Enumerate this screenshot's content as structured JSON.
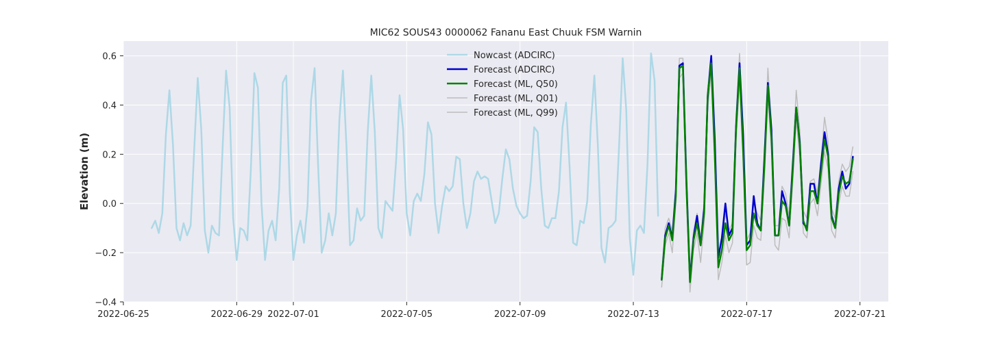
{
  "chart_data": {
    "type": "line",
    "title": "MIC62 SOUS43 0000062 Fananu East Chuuk FSM Warnin",
    "xlabel": "",
    "ylabel": "Elevation (m)",
    "x_axis_type": "date",
    "xlim": [
      "2022-06-25T00:00",
      "2022-07-22T00:00"
    ],
    "ylim": [
      -0.4,
      0.66
    ],
    "xticks": [
      "2022-06-25",
      "2022-06-29",
      "2022-07-01",
      "2022-07-05",
      "2022-07-09",
      "2022-07-13",
      "2022-07-17",
      "2022-07-21"
    ],
    "yticks": [
      -0.4,
      -0.2,
      0.0,
      0.2,
      0.4,
      0.6
    ],
    "ytick_labels": [
      "−0.4",
      "−0.2",
      "0.0",
      "0.2",
      "0.4",
      "0.6"
    ],
    "grid": true,
    "legend_position": "top-center",
    "background_color": "#eaeaf2",
    "series": [
      {
        "name": "Nowcast (ADCIRC)",
        "color": "#add8e6",
        "line_width": 2.5,
        "start": "2022-06-26T00:00",
        "step_hours": 3,
        "values": [
          -0.1,
          -0.07,
          -0.12,
          -0.04,
          0.28,
          0.46,
          0.24,
          -0.1,
          -0.15,
          -0.08,
          -0.13,
          -0.09,
          0.22,
          0.51,
          0.3,
          -0.11,
          -0.2,
          -0.09,
          -0.12,
          -0.13,
          0.22,
          0.54,
          0.39,
          -0.06,
          -0.23,
          -0.1,
          -0.11,
          -0.15,
          0.14,
          0.53,
          0.47,
          0.0,
          -0.23,
          -0.11,
          -0.07,
          -0.15,
          0.06,
          0.49,
          0.52,
          0.04,
          -0.23,
          -0.13,
          -0.07,
          -0.16,
          -0.01,
          0.42,
          0.55,
          0.15,
          -0.2,
          -0.15,
          -0.04,
          -0.13,
          -0.04,
          0.34,
          0.54,
          0.23,
          -0.17,
          -0.15,
          -0.02,
          -0.07,
          -0.05,
          0.29,
          0.52,
          0.29,
          -0.1,
          -0.14,
          0.01,
          -0.01,
          -0.03,
          0.17,
          0.44,
          0.3,
          -0.04,
          -0.13,
          0.01,
          0.04,
          0.01,
          0.12,
          0.33,
          0.28,
          0.0,
          -0.12,
          -0.01,
          0.07,
          0.05,
          0.07,
          0.19,
          0.18,
          0.0,
          -0.1,
          -0.04,
          0.09,
          0.13,
          0.1,
          0.11,
          0.1,
          0.01,
          -0.08,
          -0.04,
          0.1,
          0.22,
          0.18,
          0.06,
          -0.01,
          -0.04,
          -0.06,
          -0.05,
          0.09,
          0.31,
          0.29,
          0.06,
          -0.09,
          -0.1,
          -0.06,
          -0.06,
          0.05,
          0.31,
          0.41,
          0.15,
          -0.16,
          -0.17,
          -0.07,
          -0.08,
          0.01,
          0.32,
          0.52,
          0.23,
          -0.18,
          -0.24,
          -0.1,
          -0.09,
          -0.07,
          0.24,
          0.59,
          0.38,
          -0.14,
          -0.29,
          -0.11,
          -0.09,
          -0.12,
          0.16,
          0.61,
          0.5,
          -0.05
        ]
      },
      {
        "name": "Forecast (ADCIRC)",
        "color": "#0000cd",
        "line_width": 2.5,
        "start": "2022-07-14T00:00",
        "step_hours": 3,
        "values": [
          -0.31,
          -0.13,
          -0.08,
          -0.14,
          0.05,
          0.56,
          0.57,
          0.09,
          -0.31,
          -0.14,
          -0.05,
          -0.17,
          -0.02,
          0.43,
          0.6,
          0.26,
          -0.22,
          -0.14,
          0.0,
          -0.13,
          -0.1,
          0.31,
          0.57,
          0.28,
          -0.17,
          -0.15,
          0.03,
          -0.08,
          -0.11,
          0.18,
          0.49,
          0.3,
          -0.13,
          -0.13,
          0.05,
          0.0,
          -0.09,
          0.15,
          0.39,
          0.25,
          -0.08,
          -0.1,
          0.08,
          0.08,
          0.0,
          0.16,
          0.29,
          0.2,
          -0.05,
          -0.1,
          0.06,
          0.13,
          0.06,
          0.08,
          0.19
        ]
      },
      {
        "name": "Forecast (ML, Q50)",
        "color": "#008000",
        "line_width": 2.5,
        "start": "2022-07-14T00:00",
        "step_hours": 3,
        "values": [
          -0.31,
          -0.14,
          -0.09,
          -0.15,
          0.03,
          0.55,
          0.56,
          0.07,
          -0.32,
          -0.15,
          -0.08,
          -0.17,
          -0.04,
          0.44,
          0.57,
          0.2,
          -0.26,
          -0.19,
          -0.08,
          -0.15,
          -0.12,
          0.3,
          0.55,
          0.22,
          -0.19,
          -0.17,
          -0.04,
          -0.09,
          -0.11,
          0.15,
          0.48,
          0.27,
          -0.13,
          -0.13,
          0.01,
          -0.01,
          -0.09,
          0.13,
          0.39,
          0.24,
          -0.07,
          -0.11,
          0.05,
          0.05,
          0.0,
          0.13,
          0.26,
          0.19,
          -0.06,
          -0.1,
          0.04,
          0.11,
          0.08,
          0.09,
          0.18
        ]
      },
      {
        "name": "Forecast (ML, Q01)",
        "color": "#bdbdbd",
        "line_width": 1.5,
        "start": "2022-07-14T00:00",
        "step_hours": 3,
        "values": [
          -0.34,
          -0.17,
          -0.12,
          -0.2,
          0.0,
          0.51,
          0.53,
          0.03,
          -0.36,
          -0.19,
          -0.12,
          -0.24,
          -0.08,
          0.39,
          0.53,
          0.15,
          -0.31,
          -0.24,
          -0.13,
          -0.2,
          -0.16,
          0.25,
          0.5,
          0.17,
          -0.25,
          -0.24,
          -0.09,
          -0.14,
          -0.15,
          0.1,
          0.43,
          0.22,
          -0.17,
          -0.19,
          -0.06,
          -0.07,
          -0.14,
          0.08,
          0.34,
          0.19,
          -0.12,
          -0.14,
          0.0,
          0.02,
          -0.05,
          0.08,
          0.21,
          0.14,
          -0.11,
          -0.14,
          0.0,
          0.07,
          0.03,
          0.03,
          0.13
        ]
      },
      {
        "name": "Forecast (ML, Q99)",
        "color": "#bdbdbd",
        "line_width": 1.5,
        "start": "2022-07-14T00:00",
        "step_hours": 3,
        "values": [
          -0.28,
          -0.1,
          -0.06,
          -0.11,
          0.07,
          0.59,
          0.59,
          0.11,
          -0.29,
          -0.11,
          -0.04,
          -0.14,
          0.0,
          0.47,
          0.6,
          0.25,
          -0.22,
          -0.15,
          -0.04,
          -0.11,
          -0.08,
          0.35,
          0.61,
          0.27,
          -0.15,
          -0.12,
          0.0,
          -0.04,
          -0.07,
          0.2,
          0.55,
          0.32,
          -0.09,
          -0.09,
          0.07,
          0.04,
          -0.05,
          0.18,
          0.46,
          0.3,
          -0.03,
          -0.06,
          0.09,
          0.1,
          0.04,
          0.18,
          0.35,
          0.25,
          -0.02,
          -0.06,
          0.09,
          0.16,
          0.13,
          0.15,
          0.23
        ]
      }
    ]
  }
}
